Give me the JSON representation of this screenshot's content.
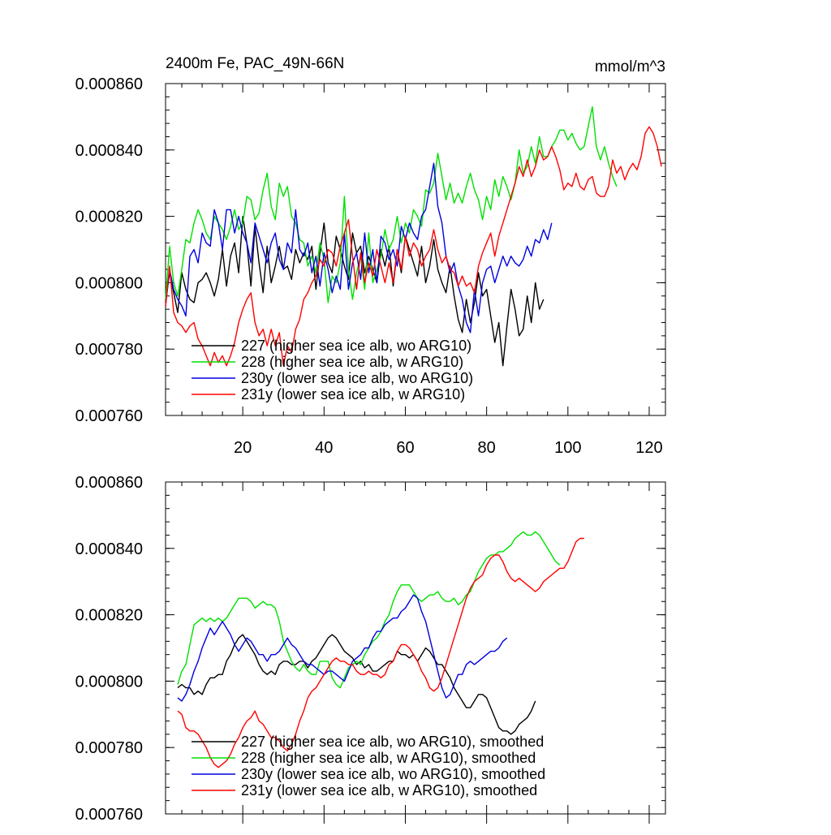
{
  "chart_data": [
    {
      "type": "line",
      "title": "2400m Fe, PAC_49N-66N",
      "units_label": "mmol/m^3",
      "xlim": [
        1,
        124
      ],
      "ylim": [
        0.00076,
        0.00086
      ],
      "x_ticks": [
        20,
        40,
        60,
        80,
        100,
        120
      ],
      "y_ticks": [
        "0.000760",
        "0.000780",
        "0.000800",
        "0.000820",
        "0.000840",
        "0.000860"
      ],
      "legend_position": "bottom-left",
      "series": [
        {
          "name": "227 (higher sea ice alb, wo ARG10)",
          "color": "#000000",
          "x_start": 1,
          "x_step": 1,
          "values": [
            0.000794,
            0.000803,
            0.000797,
            0.000791,
            0.000803,
            0.000798,
            0.000795,
            0.000794,
            0.0008,
            0.000801,
            0.000803,
            0.0008,
            0.000796,
            0.000801,
            0.00081,
            0.000799,
            0.000808,
            0.000812,
            0.000803,
            0.00082,
            0.000812,
            0.000799,
            0.000817,
            0.000806,
            0.000797,
            0.000811,
            0.0008,
            0.000805,
            0.000811,
            0.000804,
            0.000805,
            0.000801,
            0.00081,
            0.000806,
            0.000809,
            0.000807,
            0.000811,
            0.000798,
            0.000809,
            0.000818,
            0.000806,
            0.000803,
            0.000814,
            0.00081,
            0.000805,
            0.000801,
            0.000815,
            0.000809,
            0.000811,
            0.000803,
            0.000808,
            0.000804,
            0.0008,
            0.00081,
            0.000805,
            0.000811,
            0.000799,
            0.00081,
            0.000803,
            0.000814,
            0.00081,
            0.000806,
            0.000802,
            0.000811,
            0.0008,
            0.000805,
            0.000813,
            0.000804,
            0.0008,
            0.000797,
            0.000805,
            0.000796,
            0.000789,
            0.000785,
            0.000795,
            0.000788,
            0.000794,
            0.000803,
            0.000796,
            0.000798,
            0.00079,
            0.000782,
            0.000788,
            0.000775,
            0.000787,
            0.000798,
            0.000792,
            0.000784,
            0.000786,
            0.000796,
            0.000788,
            0.0008,
            0.000792,
            0.000795
          ]
        },
        {
          "name": "228 (higher sea ice alb, w ARG10)",
          "color": "#00e000",
          "x_start": 1,
          "x_step": 1,
          "values": [
            0.000795,
            0.000811,
            0.0008,
            0.000796,
            0.000804,
            0.000813,
            0.000812,
            0.000818,
            0.000822,
            0.000819,
            0.000815,
            0.000813,
            0.00082,
            0.000818,
            0.000816,
            0.000813,
            0.000817,
            0.000822,
            0.000816,
            0.000818,
            0.000826,
            0.000825,
            0.000819,
            0.000821,
            0.000828,
            0.000833,
            0.000823,
            0.000819,
            0.00083,
            0.000826,
            0.000829,
            0.00082,
            0.000818,
            0.000813,
            0.000812,
            0.000805,
            0.000808,
            0.000803,
            0.000812,
            0.000807,
            0.000794,
            0.000802,
            0.0008,
            0.000806,
            0.000826,
            0.000804,
            0.000795,
            0.000803,
            0.000808,
            0.000798,
            0.000815,
            0.0008,
            0.000804,
            0.000808,
            0.000816,
            0.00081,
            0.000813,
            0.00082,
            0.000812,
            0.000818,
            0.000815,
            0.000822,
            0.00082,
            0.000817,
            0.000828,
            0.000827,
            0.00083,
            0.000839,
            0.000832,
            0.000825,
            0.00083,
            0.000824,
            0.000827,
            0.000824,
            0.000829,
            0.000833,
            0.000828,
            0.000825,
            0.000819,
            0.000826,
            0.000822,
            0.000831,
            0.000826,
            0.000832,
            0.000829,
            0.000825,
            0.00083,
            0.00084,
            0.000833,
            0.000835,
            0.000841,
            0.000836,
            0.000844,
            0.000838,
            0.000838,
            0.000841,
            0.000843,
            0.000846,
            0.000846,
            0.000843,
            0.000845,
            0.000842,
            0.00084,
            0.000841,
            0.000847,
            0.000853,
            0.000841,
            0.000837,
            0.000841,
            0.000836,
            0.000832,
            0.000829
          ]
        },
        {
          "name": "230y (lower sea ice alb, wo ARG10)",
          "color": "#0000e0",
          "x_start": 1,
          "x_step": 1,
          "values": [
            0.000793,
            0.000804,
            0.000798,
            0.000795,
            0.000793,
            0.00079,
            0.000808,
            0.00081,
            0.000806,
            0.000815,
            0.000812,
            0.000811,
            0.000822,
            0.000818,
            0.00081,
            0.000822,
            0.000822,
            0.000815,
            0.00082,
            0.000815,
            0.000812,
            0.000806,
            0.000818,
            0.000814,
            0.00081,
            0.000806,
            0.000812,
            0.000815,
            0.000807,
            0.000804,
            0.000812,
            0.000809,
            0.000822,
            0.00081,
            0.000808,
            0.000812,
            0.000803,
            0.000808,
            0.000799,
            0.000809,
            0.000804,
            0.000797,
            0.000802,
            0.000798,
            0.000815,
            0.000798,
            0.000806,
            0.000809,
            0.000801,
            0.000815,
            0.000803,
            0.00081,
            0.0008,
            0.000814,
            0.000812,
            0.000807,
            0.00081,
            0.000805,
            0.000817,
            0.000813,
            0.000818,
            0.000815,
            0.000813,
            0.00082,
            0.000822,
            0.000829,
            0.000836,
            0.000823,
            0.000818,
            0.000808,
            0.000803,
            0.000806,
            0.000799,
            0.000795,
            0.000788,
            0.000785,
            0.000798,
            0.00079,
            0.0008,
            0.000804,
            0.000805,
            0.0008,
            0.000804,
            0.000808,
            0.000805,
            0.000808,
            0.000806,
            0.000805,
            0.000807,
            0.000811,
            0.000808,
            0.000813,
            0.000812,
            0.000816,
            0.000813,
            0.000818
          ]
        },
        {
          "name": "231y (lower sea ice alb, w ARG10)",
          "color": "#ff0000",
          "x_start": 1,
          "x_step": 1,
          "values": [
            0.000793,
            0.000805,
            0.000791,
            0.000788,
            0.000787,
            0.000785,
            0.000787,
            0.000788,
            0.000783,
            0.000781,
            0.000778,
            0.000775,
            0.000779,
            0.000776,
            0.000778,
            0.000775,
            0.000778,
            0.000782,
            0.000788,
            0.000792,
            0.000795,
            0.000797,
            0.000788,
            0.000784,
            0.000786,
            0.000781,
            0.000786,
            0.000781,
            0.000785,
            0.000775,
            0.000781,
            0.000779,
            0.000786,
            0.000789,
            0.000795,
            0.000797,
            0.0008,
            0.000802,
            0.000807,
            0.000805,
            0.00081,
            0.000809,
            0.000805,
            0.000811,
            0.000815,
            0.000819,
            0.000808,
            0.000798,
            0.000809,
            0.0008,
            0.000806,
            0.000802,
            0.00081,
            0.000805,
            0.0008,
            0.000806,
            0.0008,
            0.00081,
            0.000804,
            0.000814,
            0.000808,
            0.000812,
            0.00081,
            0.000805,
            0.000808,
            0.00081,
            0.000816,
            0.00081,
            0.000806,
            0.000808,
            0.000804,
            0.000803,
            0.000799,
            0.000802,
            0.000799,
            0.0008,
            0.000797,
            0.000805,
            0.000809,
            0.000812,
            0.000815,
            0.000808,
            0.000814,
            0.000818,
            0.000822,
            0.000826,
            0.00083,
            0.000835,
            0.000832,
            0.000837,
            0.000832,
            0.000835,
            0.00084,
            0.000837,
            0.000838,
            0.000841,
            0.000838,
            0.000834,
            0.000828,
            0.00083,
            0.000829,
            0.000833,
            0.000829,
            0.000828,
            0.000831,
            0.000832,
            0.000827,
            0.000826,
            0.000826,
            0.000829,
            0.000837,
            0.000833,
            0.000835,
            0.000831,
            0.000834,
            0.000836,
            0.000834,
            0.000838,
            0.000845,
            0.000847,
            0.000845,
            0.000841,
            0.000835
          ]
        }
      ]
    },
    {
      "type": "line",
      "xlim": [
        1,
        124
      ],
      "ylim": [
        0.00076,
        0.00086
      ],
      "x_ticks": [],
      "y_ticks": [
        "0.000760",
        "0.000780",
        "0.000800",
        "0.000820",
        "0.000840",
        "0.000860"
      ],
      "legend_position": "bottom-left",
      "series": [
        {
          "name": "227 (higher sea ice alb, wo ARG10), smoothed",
          "color": "#000000",
          "x_start": 4,
          "x_step": 1,
          "values": [
            0.000798,
            0.000799,
            0.000798,
            0.000798,
            0.000796,
            0.000797,
            0.000796,
            0.000799,
            0.000801,
            0.000801,
            0.000802,
            0.000802,
            0.000806,
            0.000808,
            0.000811,
            0.000813,
            0.000814,
            0.000812,
            0.00081,
            0.000808,
            0.000805,
            0.000803,
            0.000802,
            0.000803,
            0.000802,
            0.000805,
            0.000806,
            0.000806,
            0.000805,
            0.000805,
            0.000806,
            0.000806,
            0.000804,
            0.000806,
            0.000807,
            0.000809,
            0.000811,
            0.000813,
            0.000814,
            0.000813,
            0.000811,
            0.000809,
            0.000808,
            0.000807,
            0.000805,
            0.000806,
            0.000804,
            0.000805,
            0.000803,
            0.000803,
            0.000804,
            0.000805,
            0.000806,
            0.000806,
            0.000809,
            0.000808,
            0.000808,
            0.000807,
            0.000808,
            0.000806,
            0.000808,
            0.00081,
            0.000809,
            0.000807,
            0.000805,
            0.000805,
            0.000803,
            0.000801,
            0.000798,
            0.000796,
            0.000794,
            0.000792,
            0.000792,
            0.000794,
            0.000796,
            0.000796,
            0.000795,
            0.000792,
            0.000789,
            0.000786,
            0.000785,
            0.000785,
            0.000784,
            0.000785,
            0.000787,
            0.000788,
            0.000789,
            0.000791,
            0.000794
          ]
        },
        {
          "name": "228 (higher sea ice alb, w ARG10), smoothed",
          "color": "#00e000",
          "x_start": 4,
          "x_step": 1,
          "values": [
            0.000799,
            0.000803,
            0.000805,
            0.000811,
            0.000817,
            0.000818,
            0.000819,
            0.000818,
            0.000819,
            0.000818,
            0.000819,
            0.000818,
            0.000819,
            0.000821,
            0.000823,
            0.000825,
            0.000825,
            0.000825,
            0.000824,
            0.000822,
            0.000823,
            0.000824,
            0.000823,
            0.000823,
            0.000822,
            0.000818,
            0.000812,
            0.000809,
            0.000806,
            0.000804,
            0.000803,
            0.000805,
            0.000803,
            0.000802,
            0.000802,
            0.000806,
            0.000806,
            0.000806,
            0.000801,
            0.000799,
            0.000798,
            0.000801,
            0.000804,
            0.000805,
            0.000806,
            0.000805,
            0.000808,
            0.00081,
            0.000812,
            0.000813,
            0.000815,
            0.000818,
            0.00082,
            0.000824,
            0.000827,
            0.000829,
            0.000829,
            0.000829,
            0.000827,
            0.000825,
            0.000824,
            0.000825,
            0.000826,
            0.000826,
            0.000827,
            0.000825,
            0.000824,
            0.000824,
            0.000825,
            0.000823,
            0.000824,
            0.000826,
            0.000827,
            0.00083,
            0.000833,
            0.000835,
            0.000837,
            0.000838,
            0.000838,
            0.000839,
            0.000839,
            0.00084,
            0.000841,
            0.000843,
            0.000844,
            0.000845,
            0.000844,
            0.000844,
            0.000845,
            0.000844,
            0.000842,
            0.00084,
            0.000838,
            0.000836,
            0.000835
          ]
        },
        {
          "name": "230y (lower sea ice alb, wo ARG10), smoothed",
          "color": "#0000e0",
          "x_start": 4,
          "x_step": 1,
          "values": [
            0.000795,
            0.000794,
            0.000796,
            0.000799,
            0.000803,
            0.000806,
            0.00081,
            0.000813,
            0.000816,
            0.000814,
            0.000816,
            0.000818,
            0.000816,
            0.000814,
            0.000811,
            0.000809,
            0.000811,
            0.000813,
            0.000812,
            0.00081,
            0.000808,
            0.000808,
            0.000806,
            0.000808,
            0.000808,
            0.000809,
            0.000811,
            0.000813,
            0.000811,
            0.00081,
            0.000808,
            0.000806,
            0.000805,
            0.000805,
            0.000804,
            0.000803,
            0.000802,
            0.000803,
            0.000803,
            0.000802,
            0.000801,
            0.0008,
            0.000803,
            0.000806,
            0.000807,
            0.000808,
            0.00081,
            0.00081,
            0.000813,
            0.000815,
            0.000815,
            0.000817,
            0.000818,
            0.000819,
            0.000819,
            0.000821,
            0.000822,
            0.000824,
            0.000826,
            0.000825,
            0.000821,
            0.000818,
            0.000813,
            0.000808,
            0.000803,
            0.000798,
            0.000795,
            0.000796,
            0.000799,
            0.000802,
            0.000802,
            0.000805,
            0.000806,
            0.000805,
            0.000806,
            0.000807,
            0.000808,
            0.000809,
            0.000809,
            0.00081,
            0.000812,
            0.000813
          ]
        },
        {
          "name": "231y (lower sea ice alb, w ARG10), smoothed",
          "color": "#ff0000",
          "x_start": 4,
          "x_step": 1,
          "values": [
            0.000791,
            0.00079,
            0.000786,
            0.000785,
            0.000785,
            0.000784,
            0.000782,
            0.00078,
            0.000777,
            0.000775,
            0.000774,
            0.000775,
            0.000776,
            0.000778,
            0.000781,
            0.000783,
            0.000786,
            0.000788,
            0.000789,
            0.000791,
            0.000788,
            0.000787,
            0.000785,
            0.000783,
            0.000783,
            0.000782,
            0.00078,
            0.000779,
            0.000781,
            0.000784,
            0.000788,
            0.000791,
            0.000795,
            0.000797,
            0.000798,
            0.0008,
            0.000802,
            0.000804,
            0.000806,
            0.000807,
            0.000806,
            0.000806,
            0.000805,
            0.000805,
            0.000803,
            0.000802,
            0.000802,
            0.000803,
            0.000802,
            0.000802,
            0.000801,
            0.000802,
            0.000805,
            0.000806,
            0.000809,
            0.000811,
            0.000811,
            0.00081,
            0.000808,
            0.000806,
            0.000803,
            0.000801,
            0.000798,
            0.000797,
            0.000798,
            0.000801,
            0.000805,
            0.000809,
            0.000813,
            0.000817,
            0.000821,
            0.000825,
            0.000828,
            0.00083,
            0.000831,
            0.000832,
            0.000835,
            0.000837,
            0.000838,
            0.000838,
            0.000836,
            0.000833,
            0.000831,
            0.00083,
            0.000831,
            0.00083,
            0.000829,
            0.000828,
            0.000827,
            0.000828,
            0.00083,
            0.000831,
            0.000832,
            0.000833,
            0.000834,
            0.000834,
            0.000836,
            0.000839,
            0.000842,
            0.000843,
            0.000843
          ]
        }
      ]
    }
  ]
}
